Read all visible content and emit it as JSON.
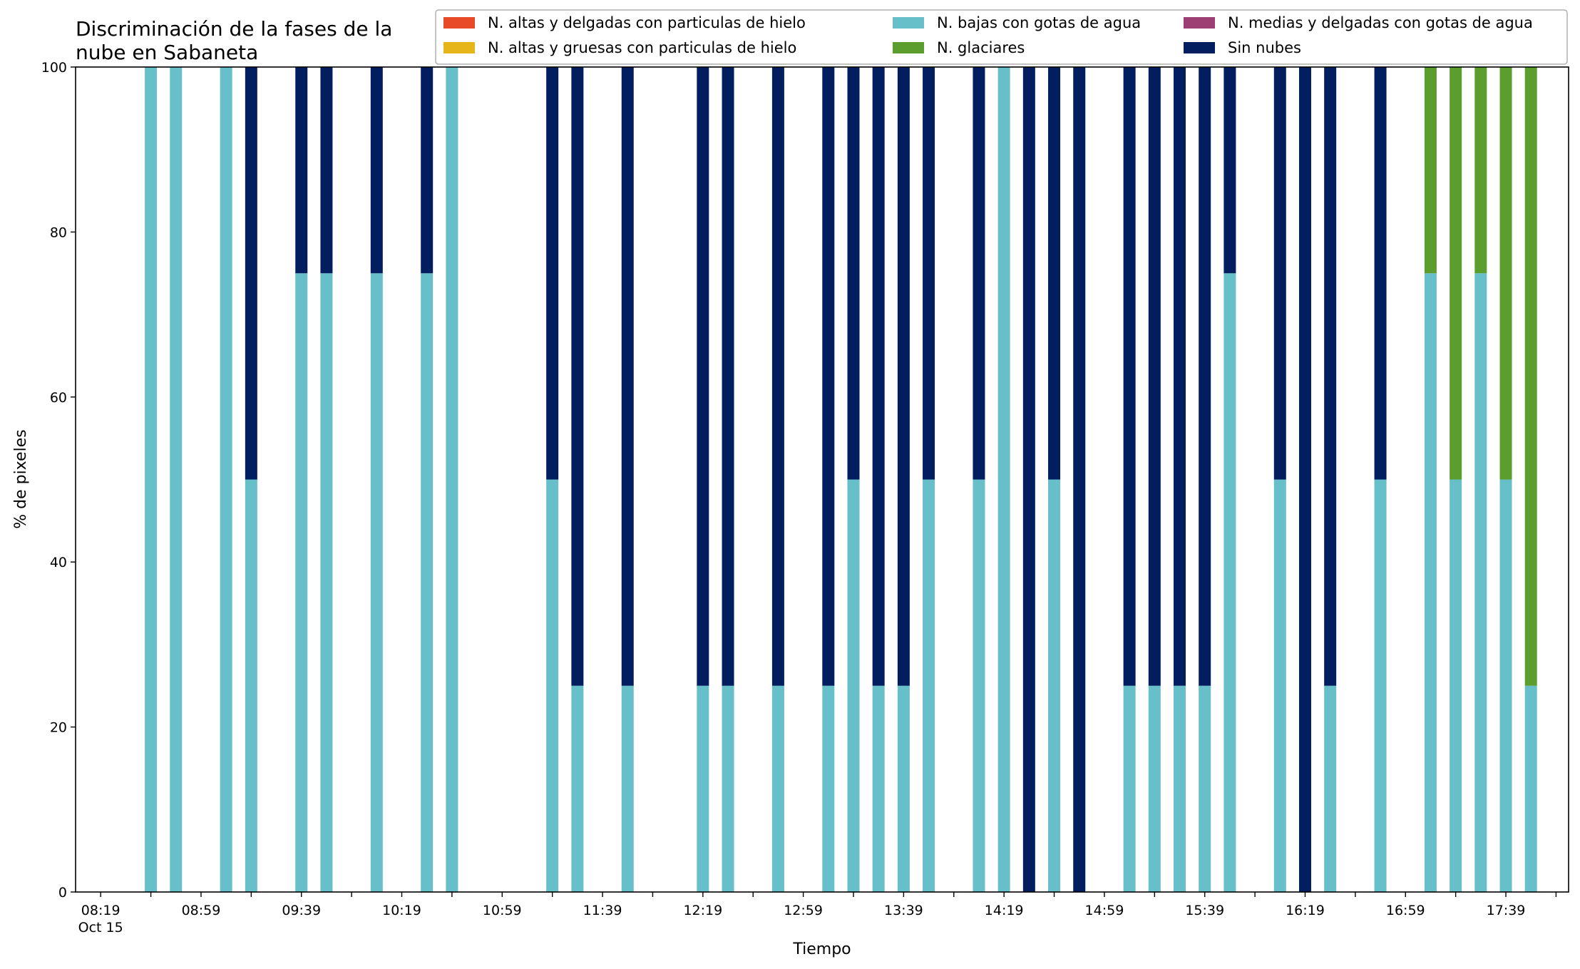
{
  "chart_data": {
    "type": "bar",
    "stacked": true,
    "title_lines": [
      "Discriminación de la fases de la",
      "nube en Sabaneta"
    ],
    "xlabel": "Tiempo",
    "ylabel": "% de pixeles",
    "ylim": [
      0,
      100
    ],
    "yticks": [
      0,
      20,
      40,
      60,
      80,
      100
    ],
    "x_start": "08:19",
    "x_end": "17:59",
    "bar_interval_minutes": 10,
    "x_tick_labels": [
      "08:19",
      "08:59",
      "09:39",
      "10:19",
      "10:59",
      "11:39",
      "12:19",
      "12:59",
      "13:39",
      "14:19",
      "14:59",
      "15:39",
      "16:19",
      "16:59",
      "17:39"
    ],
    "x_date_label": "Oct 15",
    "grid": false,
    "legend_position": "top-right",
    "legend": [
      {
        "name": "N. altas y delgadas con particulas de hielo",
        "color": "#e84a27"
      },
      {
        "name": "N. altas y gruesas con particulas de hielo",
        "color": "#e6b519"
      },
      {
        "name": "N. bajas con gotas de agua",
        "color": "#66bfc9"
      },
      {
        "name": "N. glaciares",
        "color": "#5c9e2d"
      },
      {
        "name": "N. medias y delgadas con gotas de agua",
        "color": "#9e3f74"
      },
      {
        "name": "Sin nubes",
        "color": "#021e5e"
      }
    ],
    "series": [
      {
        "name": "N. altas y delgadas con particulas de hielo",
        "color": "#e84a27",
        "x": [],
        "values": []
      },
      {
        "name": "N. altas y gruesas con particulas de hielo",
        "color": "#e6b519",
        "x": [],
        "values": []
      },
      {
        "name": "N. bajas con gotas de agua",
        "color": "#66bfc9",
        "x": [
          "08:39",
          "08:49",
          "09:09",
          "09:19",
          "09:39",
          "09:49",
          "10:09",
          "10:29",
          "10:39",
          "11:19",
          "11:29",
          "11:49",
          "12:19",
          "12:29",
          "12:49",
          "13:09",
          "13:19",
          "13:29",
          "13:39",
          "13:49",
          "14:09",
          "14:19",
          "14:39",
          "15:09",
          "15:19",
          "15:29",
          "15:39",
          "15:49",
          "16:09",
          "16:29",
          "16:49",
          "17:09",
          "17:19",
          "17:29",
          "17:39",
          "17:49"
        ],
        "values": [
          100,
          100,
          100,
          50,
          75,
          75,
          75,
          75,
          100,
          50,
          25,
          25,
          25,
          25,
          25,
          25,
          50,
          25,
          25,
          50,
          50,
          100,
          50,
          25,
          25,
          25,
          25,
          75,
          50,
          25,
          50,
          75,
          50,
          75,
          50,
          25
        ]
      },
      {
        "name": "N. glaciares",
        "color": "#5c9e2d",
        "x": [
          "17:09",
          "17:19",
          "17:29",
          "17:39",
          "17:49"
        ],
        "values": [
          25,
          50,
          25,
          50,
          75
        ]
      },
      {
        "name": "N. medias y delgadas con gotas de agua",
        "color": "#9e3f74",
        "x": [],
        "values": []
      },
      {
        "name": "Sin nubes",
        "color": "#021e5e",
        "x": [
          "09:19",
          "09:39",
          "09:49",
          "10:09",
          "10:29",
          "11:19",
          "11:29",
          "11:49",
          "12:19",
          "12:29",
          "12:49",
          "13:09",
          "13:19",
          "13:29",
          "13:39",
          "13:49",
          "14:09",
          "14:29",
          "14:39",
          "14:49",
          "15:09",
          "15:19",
          "15:29",
          "15:39",
          "15:49",
          "16:09",
          "16:19",
          "16:29",
          "16:49"
        ],
        "values": [
          50,
          25,
          25,
          25,
          25,
          50,
          75,
          75,
          75,
          75,
          75,
          75,
          50,
          75,
          75,
          50,
          50,
          100,
          50,
          100,
          75,
          75,
          75,
          75,
          25,
          50,
          100,
          75,
          50
        ]
      }
    ]
  }
}
